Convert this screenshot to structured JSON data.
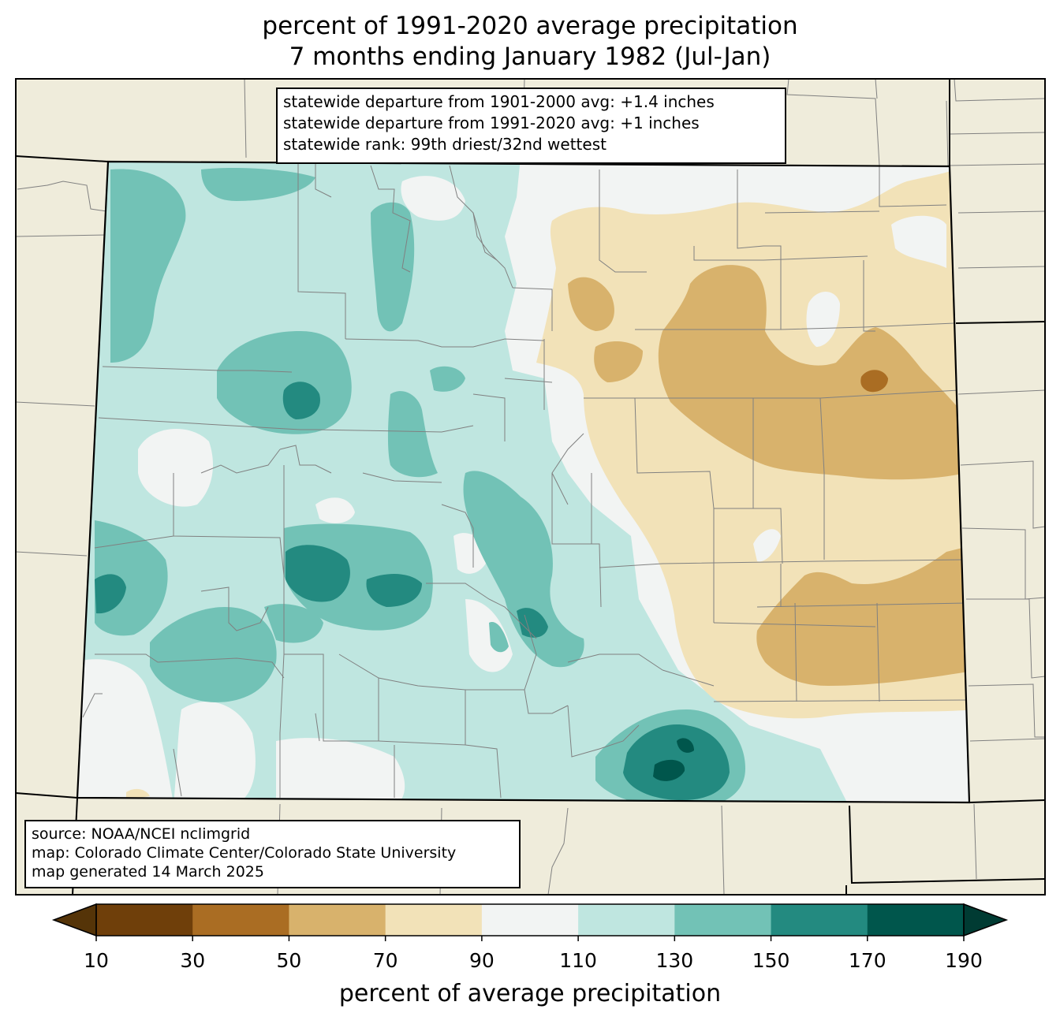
{
  "title": {
    "line1": "percent of 1991-2020 average precipitation",
    "line2": "7 months ending January 1982 (Jul-Jan)"
  },
  "stats_box": {
    "line1": "statewide departure from 1901-2000 avg: +1.4 inches",
    "line2": "statewide departure from 1991-2020 avg: +1 inches",
    "line3": "statewide rank: 99th driest/32nd wettest"
  },
  "source_box": {
    "line1": "source: NOAA/NCEI nclimgrid",
    "line2": "map: Colorado Climate Center/Colorado State University",
    "line3": "map generated 14 March 2025"
  },
  "colorbar": {
    "label": "percent of average precipitation",
    "ticks": [
      "10",
      "30",
      "50",
      "70",
      "90",
      "110",
      "130",
      "150",
      "170",
      "190"
    ],
    "colors": [
      "#6f3f0a",
      "#aa6d23",
      "#d8b26c",
      "#f2e2b8",
      "#f2f4f3",
      "#bfe6e0",
      "#72c2b6",
      "#238a80",
      "#00564c"
    ],
    "under_color": "#553408",
    "over_color": "#003b33"
  },
  "map_colors": {
    "land_background": "#efecdb",
    "state_border": "#000000",
    "county_border": "#808080"
  }
}
